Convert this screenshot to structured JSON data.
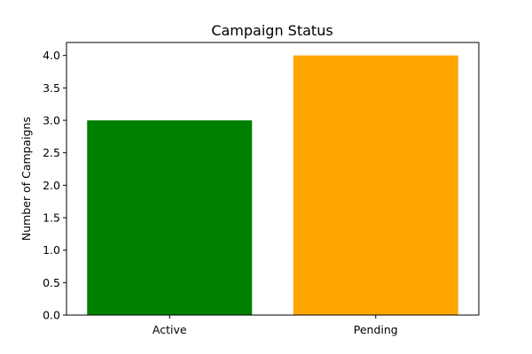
{
  "chart_data": {
    "type": "bar",
    "title": "Campaign Status",
    "xlabel": "",
    "ylabel": "Number of Campaigns",
    "categories": [
      "Active",
      "Pending"
    ],
    "values": [
      3,
      4
    ],
    "colors": [
      "#008000",
      "#ffa500"
    ],
    "ylim": [
      0,
      4.2
    ],
    "yticks": [
      "0.0",
      "0.5",
      "1.0",
      "1.5",
      "2.0",
      "2.5",
      "3.0",
      "3.5",
      "4.0"
    ],
    "grid": false,
    "legend": "none"
  }
}
